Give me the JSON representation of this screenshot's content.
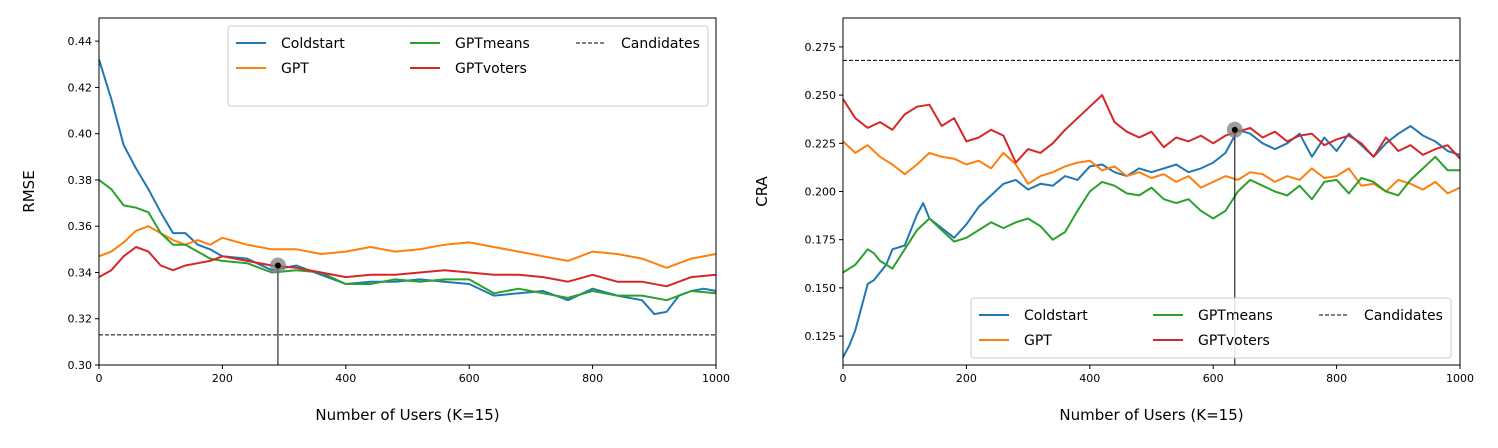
{
  "chart_data": [
    {
      "type": "line",
      "title": "",
      "xlabel": "Number of Users (K=15)",
      "ylabel": "RMSE",
      "xlim": [
        0,
        1000
      ],
      "ylim": [
        0.3,
        0.45
      ],
      "xticks": [
        0,
        200,
        400,
        600,
        800,
        1000
      ],
      "yticks": [
        0.3,
        0.32,
        0.34,
        0.36,
        0.38,
        0.4,
        0.42,
        0.44
      ],
      "ytick_labels": [
        "0.30",
        "0.32",
        "0.34",
        "0.36",
        "0.38",
        "0.40",
        "0.42",
        "0.44"
      ],
      "grid": false,
      "legend_position": "top-right",
      "legend_entries": [
        "Coldstart",
        "GPTmeans",
        "Candidates",
        "GPT",
        "GPTvoters"
      ],
      "series": [
        {
          "name": "Coldstart",
          "color": "#1f77b4",
          "x": [
            0,
            20,
            40,
            60,
            80,
            100,
            120,
            140,
            160,
            180,
            200,
            240,
            280,
            320,
            360,
            400,
            440,
            480,
            520,
            560,
            600,
            640,
            680,
            720,
            760,
            800,
            840,
            880,
            900,
            920,
            940,
            960,
            980,
            1000
          ],
          "y": [
            0.432,
            0.415,
            0.395,
            0.385,
            0.376,
            0.366,
            0.357,
            0.357,
            0.352,
            0.35,
            0.347,
            0.346,
            0.341,
            0.343,
            0.339,
            0.335,
            0.336,
            0.336,
            0.337,
            0.336,
            0.335,
            0.33,
            0.331,
            0.332,
            0.328,
            0.333,
            0.33,
            0.328,
            0.322,
            0.323,
            0.33,
            0.332,
            0.333,
            0.332
          ]
        },
        {
          "name": "GPT",
          "color": "#ff7f0e",
          "x": [
            0,
            20,
            40,
            60,
            80,
            100,
            120,
            140,
            160,
            180,
            200,
            240,
            280,
            320,
            360,
            400,
            440,
            480,
            520,
            560,
            600,
            640,
            680,
            720,
            760,
            800,
            840,
            880,
            920,
            960,
            1000
          ],
          "y": [
            0.347,
            0.349,
            0.353,
            0.358,
            0.36,
            0.357,
            0.354,
            0.352,
            0.354,
            0.352,
            0.355,
            0.352,
            0.35,
            0.35,
            0.348,
            0.349,
            0.351,
            0.349,
            0.35,
            0.352,
            0.353,
            0.351,
            0.349,
            0.347,
            0.345,
            0.349,
            0.348,
            0.346,
            0.342,
            0.346,
            0.348
          ]
        },
        {
          "name": "GPTmeans",
          "color": "#2ca02c",
          "x": [
            0,
            20,
            40,
            60,
            80,
            100,
            120,
            140,
            160,
            180,
            200,
            240,
            280,
            320,
            360,
            400,
            440,
            480,
            520,
            560,
            600,
            640,
            680,
            720,
            760,
            800,
            840,
            880,
            920,
            960,
            1000
          ],
          "y": [
            0.38,
            0.376,
            0.369,
            0.368,
            0.366,
            0.357,
            0.352,
            0.352,
            0.349,
            0.346,
            0.345,
            0.344,
            0.34,
            0.341,
            0.34,
            0.335,
            0.335,
            0.337,
            0.336,
            0.337,
            0.337,
            0.331,
            0.333,
            0.331,
            0.329,
            0.332,
            0.33,
            0.33,
            0.328,
            0.332,
            0.331
          ]
        },
        {
          "name": "GPTvoters",
          "color": "#d62728",
          "x": [
            0,
            20,
            40,
            60,
            80,
            100,
            120,
            140,
            160,
            180,
            200,
            240,
            280,
            320,
            360,
            400,
            440,
            480,
            520,
            560,
            600,
            640,
            680,
            720,
            760,
            800,
            840,
            880,
            920,
            960,
            1000
          ],
          "y": [
            0.338,
            0.341,
            0.347,
            0.351,
            0.349,
            0.343,
            0.341,
            0.343,
            0.344,
            0.345,
            0.347,
            0.345,
            0.343,
            0.342,
            0.34,
            0.338,
            0.339,
            0.339,
            0.34,
            0.341,
            0.34,
            0.339,
            0.339,
            0.338,
            0.336,
            0.339,
            0.336,
            0.336,
            0.334,
            0.338,
            0.339
          ]
        },
        {
          "name": "Candidates",
          "color": "#000000",
          "dashed": true,
          "x": [
            0,
            1000
          ],
          "y": [
            0.313,
            0.313
          ]
        }
      ],
      "marker": {
        "x": 290,
        "y": 0.343
      }
    },
    {
      "type": "line",
      "title": "",
      "xlabel": "Number of Users (K=15)",
      "ylabel": "CRA",
      "xlim": [
        0,
        1000
      ],
      "ylim": [
        0.11,
        0.29
      ],
      "xticks": [
        0,
        200,
        400,
        600,
        800,
        1000
      ],
      "yticks": [
        0.125,
        0.15,
        0.175,
        0.2,
        0.225,
        0.25,
        0.275
      ],
      "ytick_labels": [
        "0.125",
        "0.150",
        "0.175",
        "0.200",
        "0.225",
        "0.250",
        "0.275"
      ],
      "grid": false,
      "legend_position": "bottom-right",
      "legend_entries": [
        "Coldstart",
        "GPTmeans",
        "Candidates",
        "GPT",
        "GPTvoters"
      ],
      "series": [
        {
          "name": "Coldstart",
          "color": "#1f77b4",
          "x": [
            0,
            10,
            20,
            30,
            40,
            50,
            60,
            70,
            80,
            100,
            120,
            130,
            140,
            160,
            180,
            200,
            220,
            240,
            260,
            280,
            300,
            320,
            340,
            360,
            380,
            400,
            420,
            440,
            460,
            480,
            500,
            520,
            540,
            560,
            580,
            600,
            620,
            640,
            660,
            680,
            700,
            720,
            740,
            760,
            780,
            800,
            820,
            840,
            860,
            880,
            900,
            920,
            940,
            960,
            980,
            1000
          ],
          "y": [
            0.114,
            0.12,
            0.128,
            0.14,
            0.152,
            0.154,
            0.158,
            0.162,
            0.17,
            0.172,
            0.188,
            0.194,
            0.186,
            0.181,
            0.176,
            0.183,
            0.192,
            0.198,
            0.204,
            0.206,
            0.201,
            0.204,
            0.203,
            0.208,
            0.206,
            0.213,
            0.214,
            0.21,
            0.208,
            0.212,
            0.21,
            0.212,
            0.214,
            0.21,
            0.212,
            0.215,
            0.22,
            0.232,
            0.23,
            0.225,
            0.222,
            0.225,
            0.23,
            0.218,
            0.228,
            0.221,
            0.23,
            0.224,
            0.218,
            0.225,
            0.23,
            0.234,
            0.229,
            0.226,
            0.221,
            0.219
          ]
        },
        {
          "name": "GPT",
          "color": "#ff7f0e",
          "x": [
            0,
            20,
            40,
            60,
            80,
            100,
            120,
            140,
            160,
            180,
            200,
            220,
            240,
            260,
            280,
            300,
            320,
            340,
            360,
            380,
            400,
            420,
            440,
            460,
            480,
            500,
            520,
            540,
            560,
            580,
            600,
            620,
            640,
            660,
            680,
            700,
            720,
            740,
            760,
            780,
            800,
            820,
            840,
            860,
            880,
            900,
            920,
            940,
            960,
            980,
            1000
          ],
          "y": [
            0.226,
            0.22,
            0.224,
            0.218,
            0.214,
            0.209,
            0.214,
            0.22,
            0.218,
            0.217,
            0.214,
            0.216,
            0.212,
            0.22,
            0.214,
            0.204,
            0.208,
            0.21,
            0.213,
            0.215,
            0.216,
            0.211,
            0.213,
            0.208,
            0.21,
            0.207,
            0.209,
            0.205,
            0.208,
            0.202,
            0.205,
            0.208,
            0.206,
            0.21,
            0.209,
            0.205,
            0.208,
            0.206,
            0.212,
            0.207,
            0.208,
            0.212,
            0.203,
            0.204,
            0.2,
            0.206,
            0.204,
            0.201,
            0.205,
            0.199,
            0.202
          ]
        },
        {
          "name": "GPTmeans",
          "color": "#2ca02c",
          "x": [
            0,
            20,
            40,
            50,
            60,
            80,
            100,
            120,
            140,
            160,
            180,
            200,
            220,
            240,
            260,
            280,
            300,
            320,
            340,
            360,
            380,
            400,
            420,
            440,
            460,
            480,
            500,
            520,
            540,
            560,
            580,
            600,
            620,
            640,
            660,
            680,
            700,
            720,
            740,
            760,
            780,
            800,
            820,
            840,
            860,
            880,
            900,
            920,
            940,
            960,
            980,
            1000
          ],
          "y": [
            0.158,
            0.162,
            0.17,
            0.168,
            0.164,
            0.16,
            0.17,
            0.18,
            0.186,
            0.18,
            0.174,
            0.176,
            0.18,
            0.184,
            0.181,
            0.184,
            0.186,
            0.182,
            0.175,
            0.179,
            0.19,
            0.2,
            0.205,
            0.203,
            0.199,
            0.198,
            0.202,
            0.196,
            0.194,
            0.196,
            0.19,
            0.186,
            0.19,
            0.2,
            0.206,
            0.203,
            0.2,
            0.198,
            0.203,
            0.196,
            0.205,
            0.206,
            0.199,
            0.207,
            0.205,
            0.2,
            0.198,
            0.206,
            0.212,
            0.218,
            0.211,
            0.211
          ]
        },
        {
          "name": "GPTvoters",
          "color": "#d62728",
          "x": [
            0,
            20,
            40,
            60,
            80,
            100,
            120,
            140,
            160,
            180,
            200,
            220,
            240,
            260,
            280,
            300,
            320,
            340,
            360,
            380,
            400,
            420,
            440,
            460,
            480,
            500,
            520,
            540,
            560,
            580,
            600,
            620,
            640,
            660,
            680,
            700,
            720,
            740,
            760,
            780,
            800,
            820,
            840,
            860,
            880,
            900,
            920,
            940,
            960,
            980,
            1000
          ],
          "y": [
            0.248,
            0.238,
            0.233,
            0.236,
            0.232,
            0.24,
            0.244,
            0.245,
            0.234,
            0.238,
            0.226,
            0.228,
            0.232,
            0.229,
            0.215,
            0.222,
            0.22,
            0.225,
            0.232,
            0.238,
            0.244,
            0.25,
            0.236,
            0.231,
            0.228,
            0.231,
            0.223,
            0.228,
            0.226,
            0.229,
            0.225,
            0.229,
            0.231,
            0.233,
            0.228,
            0.231,
            0.226,
            0.229,
            0.23,
            0.224,
            0.227,
            0.229,
            0.225,
            0.218,
            0.228,
            0.221,
            0.224,
            0.219,
            0.222,
            0.224,
            0.217
          ]
        },
        {
          "name": "Candidates",
          "color": "#000000",
          "dashed": true,
          "x": [
            0,
            1000
          ],
          "y": [
            0.268,
            0.268
          ]
        }
      ],
      "marker": {
        "x": 635,
        "y": 0.232
      }
    }
  ]
}
